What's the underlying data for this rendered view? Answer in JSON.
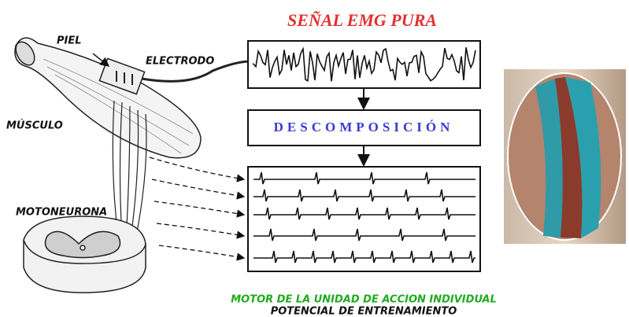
{
  "title": "SEÑAL EMG PURA",
  "labels": {
    "skin": "PIEL",
    "electrode": "ELECTRODO",
    "muscle": "MÚSCULO",
    "motoneuron": "MOTONEURONA"
  },
  "decomposition": "DESCOMPOSICIÓN",
  "caption": [
    "MOTOR DE LA UNIDAD DE ACCION INDIVIDUAL",
    "POTENCIAL DE ENTRENAMIENTO"
  ]
}
